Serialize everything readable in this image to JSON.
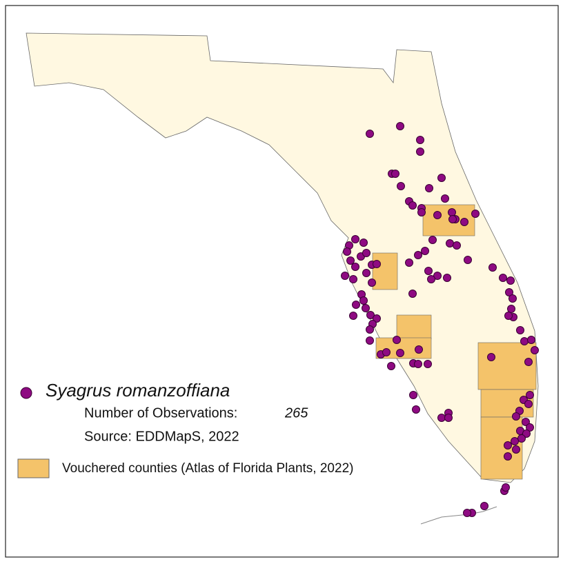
{
  "legend": {
    "species": "Syagrus romanzoffiana",
    "observations_label": "Number of Observations:",
    "observations_count": 265,
    "source": "Source: EDDMapS, 2022",
    "vouchered_label": "Vouchered counties (Atlas of Florida Plants, 2022)"
  }
}
